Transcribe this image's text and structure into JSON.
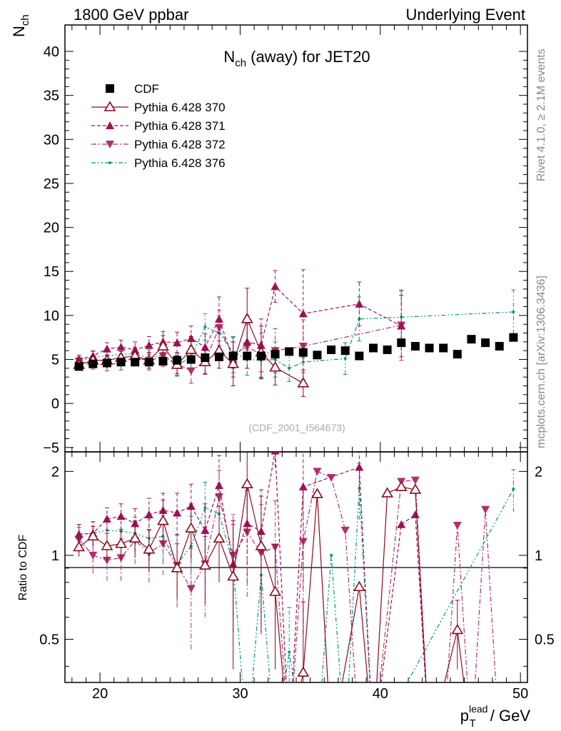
{
  "header": {
    "left": "1800 GeV ppbar",
    "right": "Underlying Event"
  },
  "side_text": {
    "rivet": "Rivet 4.1.0, ≥ 2.1M events",
    "mcplots": "mcplots.cern.ch [arXiv:1306.3436]"
  },
  "chart_data": {
    "type": "scatter",
    "title": "N_ch (away) for JET20",
    "title_main": "N",
    "title_sub": "ch",
    "title_rest": " (away) for JET20",
    "ylabel_main": "N",
    "ylabel_sub": "ch",
    "xlabel_p": "p",
    "xlabel_sub": "T",
    "xlabel_sup": "lead",
    "xlabel_rest": " / GeV",
    "ratio_ylabel": "Ratio to CDF",
    "watermark": "(CDF_2001_I564673)",
    "xlim": [
      17.5,
      50.5
    ],
    "ylim": [
      -5.5,
      43
    ],
    "ratio_ylim": [
      0.35,
      2.35
    ],
    "x_ticks": [
      "20",
      "30",
      "40",
      "50"
    ],
    "y_ticks": [
      "−5",
      "0",
      "5",
      "10",
      "15",
      "20",
      "25",
      "30",
      "35",
      "40"
    ],
    "ratio_ticks": [
      "0.5",
      "1",
      "2"
    ],
    "series": [
      {
        "name": "CDF",
        "color": "#000000",
        "marker": "square",
        "line": "none",
        "x": [
          18.5,
          19.5,
          20.5,
          21.5,
          22.5,
          23.5,
          24.5,
          25.5,
          26.5,
          27.5,
          28.5,
          29.5,
          30.5,
          31.5,
          32.5,
          33.5,
          34.5,
          35.5,
          36.5,
          37.5,
          38.5,
          39.5,
          40.5,
          41.5,
          42.5,
          43.5,
          44.5,
          45.5,
          46.5,
          47.5,
          48.5,
          49.5
        ],
        "y": [
          4.2,
          4.5,
          4.6,
          4.7,
          4.7,
          4.7,
          4.8,
          4.9,
          5.0,
          5.2,
          5.3,
          5.4,
          5.4,
          5.4,
          5.6,
          5.9,
          5.8,
          5.5,
          6.1,
          6.0,
          5.4,
          6.3,
          6.1,
          6.9,
          6.5,
          6.3,
          6.3,
          5.6,
          7.3,
          6.9,
          6.5,
          7.5
        ]
      },
      {
        "name": "Pythia 6.428 370",
        "color": "#8b0a1e",
        "marker": "triangle-up-open",
        "line": "solid",
        "x": [
          18.5,
          19.5,
          20.5,
          21.5,
          22.5,
          23.5,
          24.5,
          25.5,
          26.5,
          27.5,
          28.5,
          29.5,
          30.5,
          31.5,
          32.5,
          34.5
        ],
        "y": [
          4.4,
          4.9,
          4.9,
          5.2,
          5.4,
          4.9,
          6.5,
          4.4,
          6.1,
          4.7,
          6.0,
          4.5,
          9.6,
          5.8,
          4.1,
          2.3
        ],
        "yerr": [
          0.4,
          0.5,
          0.6,
          0.7,
          0.8,
          0.9,
          1.2,
          1.0,
          1.5,
          1.3,
          2.0,
          2.5,
          3.5,
          3.0,
          2.0,
          1.5
        ],
        "ratio_x": [
          18.5,
          19.5,
          20.5,
          21.5,
          22.5,
          23.5,
          24.5,
          25.5,
          26.5,
          27.5,
          28.5,
          29.5,
          30.5,
          31.5,
          32.5,
          33.5,
          34.5,
          35.5,
          36.5,
          38.5,
          39.5,
          40.5,
          41.5,
          42.5,
          43.5,
          45.5,
          46.5
        ],
        "ratio_y": [
          1.07,
          1.17,
          1.08,
          1.1,
          1.15,
          1.05,
          1.33,
          0.9,
          1.25,
          0.92,
          1.15,
          0.84,
          1.8,
          1.08,
          0.74,
          0.2,
          0.38,
          1.66,
          0.2,
          0.77,
          0.2,
          1.67,
          1.76,
          1.72,
          0.2,
          0.54,
          0.2
        ],
        "ratio_err": [
          0.08,
          0.1,
          0.12,
          0.14,
          0.17,
          0.18,
          0.25,
          0.2,
          0.28,
          0.25,
          0.35,
          0.45,
          0.6,
          0.55,
          0.35,
          0,
          0.3,
          0,
          0,
          0,
          0,
          0,
          0,
          0,
          0,
          0.15,
          0
        ]
      },
      {
        "name": "Pythia 6.428 371",
        "color": "#a0105a",
        "marker": "triangle-up-filled",
        "line": "dashed",
        "x": [
          18.5,
          19.5,
          20.5,
          21.5,
          22.5,
          23.5,
          24.5,
          25.5,
          26.5,
          27.5,
          28.5,
          29.5,
          30.5,
          31.5,
          32.5,
          34.5,
          38.5,
          41.5
        ],
        "y": [
          5.0,
          5.4,
          6.2,
          6.4,
          6.1,
          6.6,
          7.0,
          6.9,
          7.4,
          6.4,
          9.6,
          5.0,
          7.0,
          6.6,
          13.3,
          10.2,
          11.3,
          8.8
        ],
        "yerr": [
          0.5,
          0.6,
          0.7,
          0.8,
          0.9,
          1.0,
          1.2,
          1.2,
          1.4,
          1.5,
          2.5,
          2.0,
          3.0,
          3.0,
          1.8,
          5.0,
          2.5,
          3.5
        ],
        "ratio_x": [
          18.5,
          19.5,
          20.5,
          21.5,
          22.5,
          23.5,
          24.5,
          25.5,
          26.5,
          27.5,
          28.5,
          29.5,
          30.5,
          31.5,
          32.5,
          33.5,
          34.5,
          38.5,
          39.5,
          41.5,
          42.5,
          43.5
        ],
        "ratio_y": [
          1.19,
          1.2,
          1.35,
          1.38,
          1.3,
          1.4,
          1.45,
          1.42,
          1.5,
          1.23,
          1.78,
          0.93,
          1.3,
          1.22,
          2.37,
          0.2,
          1.76,
          2.07,
          0.2,
          1.29,
          1.4,
          0.2
        ],
        "ratio_err": [
          0.1,
          0.12,
          0.13,
          0.15,
          0.17,
          0.2,
          0.22,
          0.25,
          0.3,
          0.3,
          0.5,
          0.4,
          0.5,
          0.5,
          0.3,
          0,
          1.0,
          0.4,
          0,
          0,
          0,
          0
        ]
      },
      {
        "name": "Pythia 6.428 372",
        "color": "#b0306e",
        "marker": "triangle-down-filled",
        "line": "dashdot",
        "x": [
          18.5,
          19.5,
          20.5,
          21.5,
          22.5,
          23.5,
          24.5,
          25.5,
          26.5,
          27.5,
          28.5,
          29.5,
          30.5,
          31.5,
          32.5,
          34.5,
          41.5
        ],
        "y": [
          4.8,
          4.5,
          4.4,
          4.6,
          5.3,
          4.8,
          5.4,
          4.5,
          3.7,
          4.8,
          8.6,
          5.5,
          6.5,
          5.5,
          6.0,
          6.5,
          8.9
        ],
        "yerr": [
          0.5,
          0.6,
          0.7,
          0.8,
          0.9,
          1.0,
          1.2,
          1.3,
          1.4,
          1.5,
          2.0,
          2.0,
          2.5,
          2.5,
          2.5,
          3.0,
          4.0
        ],
        "ratio_x": [
          18.5,
          19.5,
          20.5,
          21.5,
          22.5,
          23.5,
          24.5,
          25.5,
          26.5,
          27.5,
          28.5,
          29.5,
          30.5,
          31.5,
          32.5,
          33.5,
          34.5,
          35.5,
          36.5,
          37.5,
          38.5,
          39.5,
          41.5,
          42.5,
          43.5,
          44.5,
          45.5,
          46.5,
          47.5,
          48.5
        ],
        "ratio_y": [
          1.14,
          1.0,
          0.96,
          0.98,
          1.13,
          1.02,
          1.1,
          0.92,
          0.76,
          0.93,
          1.62,
          1.0,
          1.21,
          1.02,
          1.07,
          0.2,
          1.12,
          2.0,
          1.9,
          1.23,
          0.2,
          0.2,
          1.84,
          1.86,
          0.2,
          0.2,
          1.28,
          0.2,
          1.46,
          0.2
        ],
        "ratio_err": [
          0.12,
          0.14,
          0.15,
          0.17,
          0.2,
          0.22,
          0.25,
          0.27,
          0.3,
          0.33,
          0.4,
          0.4,
          0.5,
          0.5,
          0.5,
          0,
          0.6,
          0,
          0,
          0,
          0,
          0,
          0,
          0,
          0,
          0,
          0,
          0,
          0,
          0
        ]
      },
      {
        "name": "Pythia 6.428 376",
        "color": "#009680",
        "marker": "dot",
        "line": "dashdotdot",
        "x": [
          18.5,
          19.5,
          20.5,
          21.5,
          22.5,
          23.5,
          24.5,
          25.5,
          26.5,
          27.5,
          28.5,
          29.5,
          30.5,
          31.5,
          32.5,
          33.5,
          34.5,
          37.5,
          38.5,
          41.5,
          49.5
        ],
        "y": [
          4.8,
          5.3,
          5.4,
          5.6,
          5.6,
          5.2,
          5.5,
          4.3,
          5.3,
          8.7,
          8.0,
          5.8,
          5.0,
          4.9,
          5.0,
          4.0,
          4.7,
          5.1,
          9.6,
          9.8,
          10.4
        ],
        "yerr": [
          0.5,
          0.6,
          0.6,
          0.7,
          0.8,
          0.9,
          1.0,
          1.2,
          1.3,
          1.5,
          2.0,
          1.8,
          1.8,
          2.0,
          2.0,
          1.5,
          2.0,
          1.8,
          2.5,
          3.0,
          2.5
        ],
        "ratio_x": [
          18.5,
          19.5,
          20.5,
          21.5,
          22.5,
          23.5,
          24.5,
          25.5,
          26.5,
          27.5,
          28.5,
          29.5,
          30.5,
          31.5,
          32.5,
          33.5,
          34.5,
          35.5,
          36.5,
          37.5,
          38.5,
          39.5,
          49.5
        ],
        "ratio_y": [
          1.19,
          1.2,
          1.23,
          1.22,
          1.2,
          1.15,
          1.17,
          0.93,
          1.08,
          1.48,
          1.41,
          0.93,
          0.2,
          0.85,
          0.2,
          0.45,
          0.2,
          0.2,
          1.0,
          0.2,
          1.74,
          0.2,
          1.73
        ],
        "ratio_err": [
          0.1,
          0.12,
          0.13,
          0.15,
          0.17,
          0.2,
          0.22,
          0.25,
          0.3,
          0.35,
          0.4,
          0.4,
          0,
          0.3,
          0,
          0.2,
          0,
          0,
          0,
          0,
          0.4,
          0,
          0.3
        ]
      }
    ]
  }
}
